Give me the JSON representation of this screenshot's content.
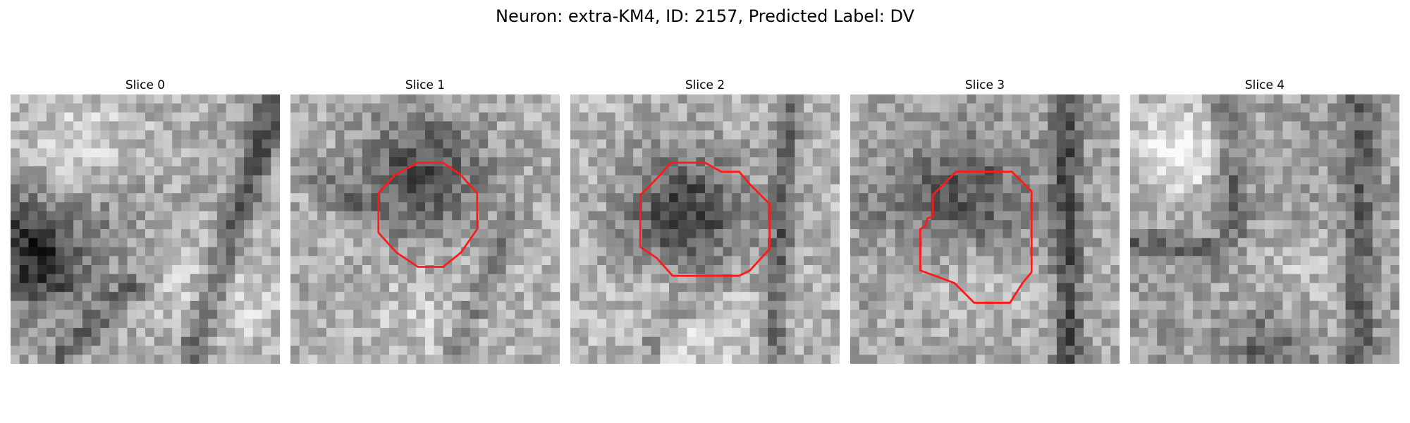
{
  "figure": {
    "title": "Neuron: extra-KM4, ID: 2157, Predicted Label: DV"
  },
  "panels": [
    {
      "title": "Slice 0",
      "has_contour": false
    },
    {
      "title": "Slice 1",
      "has_contour": true
    },
    {
      "title": "Slice 2",
      "has_contour": true
    },
    {
      "title": "Slice 3",
      "has_contour": true
    },
    {
      "title": "Slice 4",
      "has_contour": false
    }
  ],
  "colors": {
    "contour": "#ff1a1a",
    "colormap": "grayscale"
  }
}
